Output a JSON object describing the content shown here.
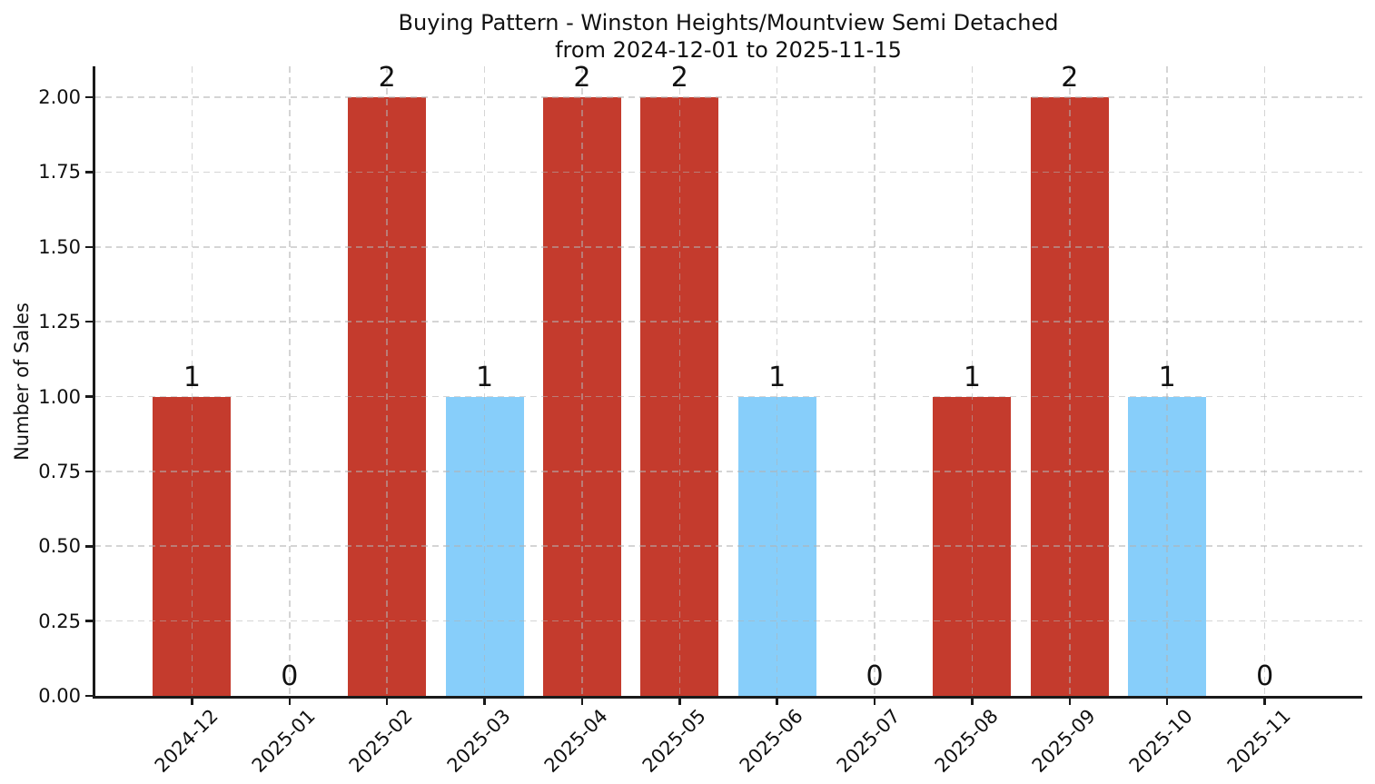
{
  "figure": {
    "title_line1": "Buying Pattern - Winston Heights/Mountview Semi Detached",
    "title_line2": "from 2024-12-01 to 2025-11-15"
  },
  "chart_data": {
    "type": "bar",
    "title": "Buying Pattern - Winston Heights/Mountview Semi Detached",
    "subtitle": "from 2024-12-01 to 2025-11-15",
    "xlabel": "",
    "ylabel": "Number of Sales",
    "categories": [
      "2024-12",
      "2025-01",
      "2025-02",
      "2025-03",
      "2025-04",
      "2025-05",
      "2025-06",
      "2025-07",
      "2025-08",
      "2025-09",
      "2025-10",
      "2025-11"
    ],
    "values": [
      1,
      0,
      2,
      1,
      2,
      2,
      1,
      0,
      1,
      2,
      1,
      0
    ],
    "value_labels": [
      "1",
      "0",
      "2",
      "1",
      "2",
      "2",
      "1",
      "0",
      "1",
      "2",
      "1",
      "0"
    ],
    "bar_colors": [
      "#c43b2d",
      "none",
      "#c43b2d",
      "#87cefa",
      "#c43b2d",
      "#c43b2d",
      "#87cefa",
      "none",
      "#c43b2d",
      "#c43b2d",
      "#87cefa",
      "none"
    ],
    "ylim": [
      0,
      2.1
    ],
    "yticks": [
      0,
      0.25,
      0.5,
      0.75,
      1.0,
      1.25,
      1.5,
      1.75,
      2.0
    ],
    "ytick_labels": [
      "0.00",
      "0.25",
      "0.50",
      "0.75",
      "1.00",
      "1.25",
      "1.50",
      "1.75",
      "2.00"
    ],
    "xtick_rotation_deg": 45,
    "grid": true,
    "grid_style": "dashed",
    "legend": null,
    "colors": {
      "bar_red": "#c43b2d",
      "bar_blue": "#87cefa",
      "grid": "#b2b2b2",
      "axis": "#1a1a1a",
      "text": "#111111",
      "background": "#ffffff"
    }
  }
}
